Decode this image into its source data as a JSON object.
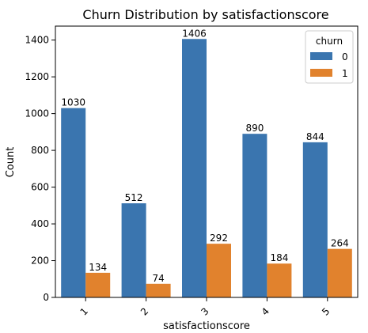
{
  "chart_data": {
    "type": "bar",
    "title": "Churn Distribution by satisfactionscore",
    "xlabel": "satisfactionscore",
    "ylabel": "Count",
    "categories": [
      "1",
      "2",
      "3",
      "4",
      "5"
    ],
    "yticks": [
      0,
      200,
      400,
      600,
      800,
      1000,
      1200,
      1400
    ],
    "ylim": [
      0,
      1476
    ],
    "series": [
      {
        "name": "0",
        "values": [
          1030,
          512,
          1406,
          890,
          844
        ],
        "color": "#3a75af"
      },
      {
        "name": "1",
        "values": [
          134,
          74,
          292,
          184,
          264
        ],
        "color": "#e1822d"
      }
    ],
    "legend": {
      "title": "churn",
      "position": "top-right"
    },
    "grid": false
  }
}
